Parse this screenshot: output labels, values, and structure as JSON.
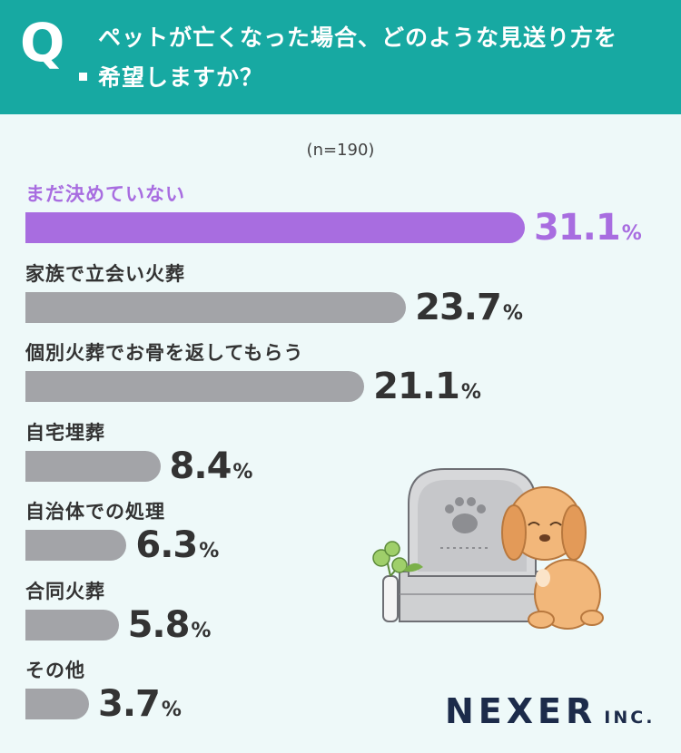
{
  "header": {
    "q_letter": "Q",
    "question_line1": "ペットが亡くなった場合、どのような見送り方を",
    "question_line2": "希望しますか？"
  },
  "sample_size": "(n=190)",
  "logo": {
    "main": "NEXER",
    "suffix": "INC."
  },
  "colors": {
    "header": "#17a9a2",
    "highlight": "#a86de0",
    "bar": "#a3a4a8",
    "background": "#eef9f9",
    "logo": "#1c2b4a"
  },
  "chart_data": {
    "type": "bar",
    "orientation": "horizontal",
    "unit": "%",
    "categories": [
      "まだ決めていない",
      "家族で立会い火葬",
      "個別火葬でお骨を返してもらう",
      "自宅埋葬",
      "自治体での処理",
      "合同火葬",
      "その他"
    ],
    "values": [
      31.1,
      23.7,
      21.1,
      8.4,
      6.3,
      5.8,
      3.7
    ],
    "value_labels": [
      "31.1",
      "23.7",
      "21.1",
      "8.4",
      "6.3",
      "5.8",
      "3.7"
    ],
    "highlight_index": 0
  }
}
